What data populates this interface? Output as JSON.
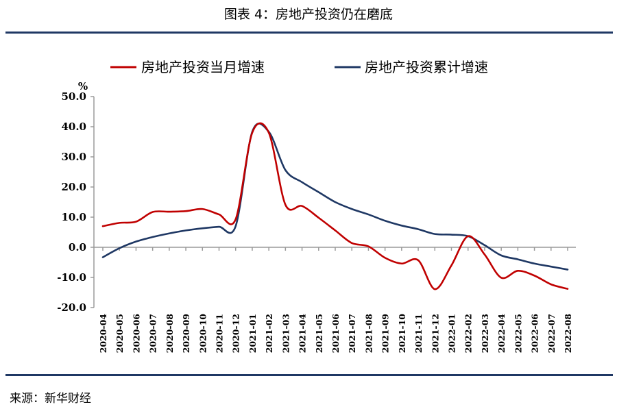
{
  "figure": {
    "title": "图表 4：房地产投资仍在磨底",
    "source": "来源：新华财经"
  },
  "colors": {
    "monthly": "#c00000",
    "cumulative": "#1f3864",
    "rule": "#1f3864"
  },
  "chart_data": {
    "type": "line",
    "ylabel": "%",
    "ylim": [
      -20,
      50
    ],
    "yticks": [
      50,
      40,
      30,
      20,
      10,
      0,
      -10,
      -20
    ],
    "ytick_labels": [
      "50.0",
      "40.0",
      "30.0",
      "20.0",
      "10.0",
      "0.0",
      "-10.0",
      "-20.0"
    ],
    "legend_position": "top",
    "categories": [
      "2020-04",
      "2020-05",
      "2020-06",
      "2020-07",
      "2020-08",
      "2020-09",
      "2020-10",
      "2020-11",
      "2020-12",
      "2021-01",
      "2021-02",
      "2021-03",
      "2021-04",
      "2021-05",
      "2021-06",
      "2021-07",
      "2021-08",
      "2021-09",
      "2021-10",
      "2021-11",
      "2021-12",
      "2022-01",
      "2022-02",
      "2022-03",
      "2022-04",
      "2022-05",
      "2022-06",
      "2022-07",
      "2022-08"
    ],
    "series": [
      {
        "name": "房地产投资当月增速",
        "color_key": "monthly",
        "values": [
          7.0,
          8.1,
          8.5,
          11.7,
          11.8,
          12.0,
          12.7,
          10.9,
          9.3,
          38.0,
          38.0,
          14.1,
          13.7,
          9.8,
          5.6,
          1.4,
          0.3,
          -3.5,
          -5.4,
          -4.3,
          -13.9,
          -6.0,
          3.7,
          -2.4,
          -10.1,
          -7.8,
          -9.4,
          -12.3,
          -13.8
        ]
      },
      {
        "name": "房地产投资累计增速",
        "color_key": "cumulative",
        "values": [
          -3.3,
          -0.3,
          1.9,
          3.4,
          4.6,
          5.6,
          6.3,
          6.8,
          7.0,
          38.3,
          38.3,
          25.6,
          21.6,
          18.3,
          15.0,
          12.7,
          10.9,
          8.8,
          7.2,
          6.0,
          4.4,
          4.2,
          3.7,
          0.7,
          -2.7,
          -4.0,
          -5.4,
          -6.4,
          -7.4
        ]
      }
    ]
  }
}
